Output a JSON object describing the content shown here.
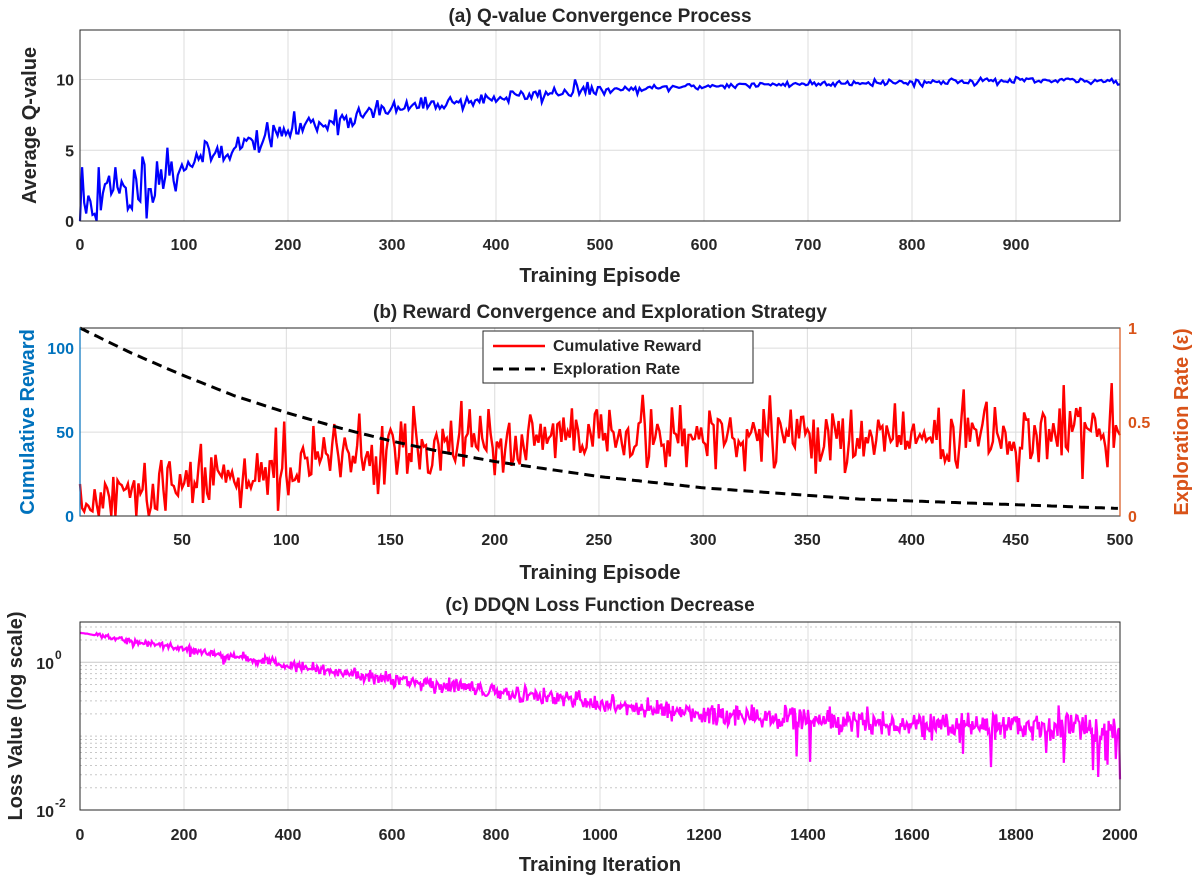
{
  "chart_data": [
    {
      "id": "a",
      "type": "line",
      "title": "(a) Q-value Convergence Process",
      "xlabel": "Training Episode",
      "ylabel": "Average Q-value",
      "xlim": [
        0,
        1000
      ],
      "ylim": [
        0,
        13.5
      ],
      "grid": true,
      "xticks": [
        0,
        100,
        200,
        300,
        400,
        500,
        600,
        700,
        800,
        900
      ],
      "xtick_labels": [
        "0",
        "100",
        "200",
        "300",
        "400",
        "500",
        "600",
        "700",
        "800",
        "900"
      ],
      "yticks": [
        0,
        5,
        10
      ],
      "ytick_labels": [
        "0",
        "5",
        "10"
      ],
      "series": [
        {
          "name": "Average Q-value",
          "color": "#0000ff",
          "x": [
            0,
            10,
            20,
            30,
            40,
            50,
            60,
            70,
            80,
            90,
            100,
            120,
            140,
            160,
            180,
            200,
            220,
            240,
            260,
            280,
            300,
            320,
            340,
            360,
            380,
            400,
            420,
            440,
            460,
            480,
            500,
            520,
            540,
            560,
            580,
            600,
            620,
            640,
            660,
            680,
            700,
            720,
            740,
            760,
            780,
            800,
            820,
            840,
            860,
            880,
            900,
            920,
            940,
            960,
            980,
            1000
          ],
          "y": [
            0.3,
            1.5,
            1.0,
            2.0,
            1.6,
            2.2,
            2.8,
            3.2,
            3.5,
            3.6,
            4.0,
            4.6,
            5.0,
            5.5,
            5.9,
            6.4,
            6.8,
            7.1,
            7.3,
            7.6,
            7.9,
            8.1,
            8.3,
            8.4,
            8.5,
            8.7,
            8.8,
            8.9,
            9.1,
            9.2,
            9.2,
            9.3,
            9.3,
            9.4,
            9.5,
            9.5,
            9.6,
            9.6,
            9.6,
            9.7,
            9.7,
            9.7,
            9.8,
            9.8,
            9.8,
            9.8,
            9.8,
            9.9,
            9.9,
            9.9,
            9.9,
            9.9,
            9.9,
            9.9,
            9.9,
            9.9
          ]
        }
      ]
    },
    {
      "id": "b",
      "type": "line",
      "title": "(b) Reward Convergence and Exploration Strategy",
      "xlabel": "Training Episode",
      "ylabel": "Cumulative Reward",
      "ylabel_right": "Exploration Rate (ε)",
      "ylabel_color": "#0072bd",
      "ylabel_right_color": "#d95319",
      "xlim": [
        1,
        500
      ],
      "ylim": [
        0,
        112
      ],
      "ylim_right": [
        0,
        1
      ],
      "grid": true,
      "legend_position": "top-center",
      "xticks": [
        50,
        100,
        150,
        200,
        250,
        300,
        350,
        400,
        450,
        500
      ],
      "xtick_labels": [
        "50",
        "100",
        "150",
        "200",
        "250",
        "300",
        "350",
        "400",
        "450",
        "500"
      ],
      "yticks": [
        0,
        50,
        100
      ],
      "ytick_labels": [
        "0",
        "50",
        "100"
      ],
      "yticks_right": [
        0,
        0.5,
        1
      ],
      "ytick_labels_right": [
        "0",
        "0.5",
        "1"
      ],
      "series": [
        {
          "name": "Cumulative Reward",
          "axis": "left",
          "color": "#ff0000",
          "dash": false,
          "x": [
            1,
            25,
            50,
            75,
            100,
            125,
            150,
            175,
            200,
            225,
            250,
            275,
            300,
            325,
            350,
            375,
            400,
            425,
            450,
            475,
            500
          ],
          "y": [
            5,
            10,
            18,
            25,
            30,
            35,
            40,
            42,
            43,
            45,
            46,
            46,
            46,
            47,
            47,
            47,
            47,
            47,
            47,
            47,
            47
          ]
        },
        {
          "name": "Exploration Rate",
          "axis": "right",
          "color": "#000000",
          "dash": true,
          "x": [
            1,
            25,
            50,
            75,
            100,
            125,
            150,
            175,
            200,
            225,
            250,
            275,
            300,
            325,
            350,
            375,
            400,
            425,
            450,
            475,
            500
          ],
          "y": [
            1.0,
            0.87,
            0.75,
            0.64,
            0.55,
            0.47,
            0.4,
            0.34,
            0.29,
            0.25,
            0.21,
            0.18,
            0.15,
            0.13,
            0.11,
            0.09,
            0.08,
            0.07,
            0.06,
            0.05,
            0.04
          ]
        }
      ]
    },
    {
      "id": "c",
      "type": "line",
      "title": "(c) DDQN Loss Function Decrease",
      "xlabel": "Training Iteration",
      "ylabel": "Loss Value (log scale)",
      "xlim": [
        0,
        2000
      ],
      "ylim": [
        0.01,
        3.5
      ],
      "yscale": "log",
      "grid": true,
      "xticks": [
        0,
        200,
        400,
        600,
        800,
        1000,
        1200,
        1400,
        1600,
        1800,
        2000
      ],
      "xtick_labels": [
        "0",
        "200",
        "400",
        "600",
        "800",
        "1000",
        "1200",
        "1400",
        "1600",
        "1800",
        "2000"
      ],
      "yticks": [
        0.01,
        1
      ],
      "ytick_labels": [
        [
          "10",
          "-2"
        ],
        [
          "10",
          "0"
        ]
      ],
      "series": [
        {
          "name": "Loss",
          "color": "#ff00ff",
          "x": [
            0,
            100,
            200,
            300,
            400,
            500,
            600,
            700,
            800,
            900,
            1000,
            1100,
            1200,
            1300,
            1400,
            1500,
            1600,
            1700,
            1800,
            1900,
            2000
          ],
          "y": [
            2.5,
            1.9,
            1.5,
            1.15,
            0.9,
            0.72,
            0.58,
            0.48,
            0.4,
            0.33,
            0.27,
            0.23,
            0.2,
            0.18,
            0.165,
            0.155,
            0.145,
            0.14,
            0.135,
            0.13,
            0.125
          ]
        }
      ]
    }
  ]
}
